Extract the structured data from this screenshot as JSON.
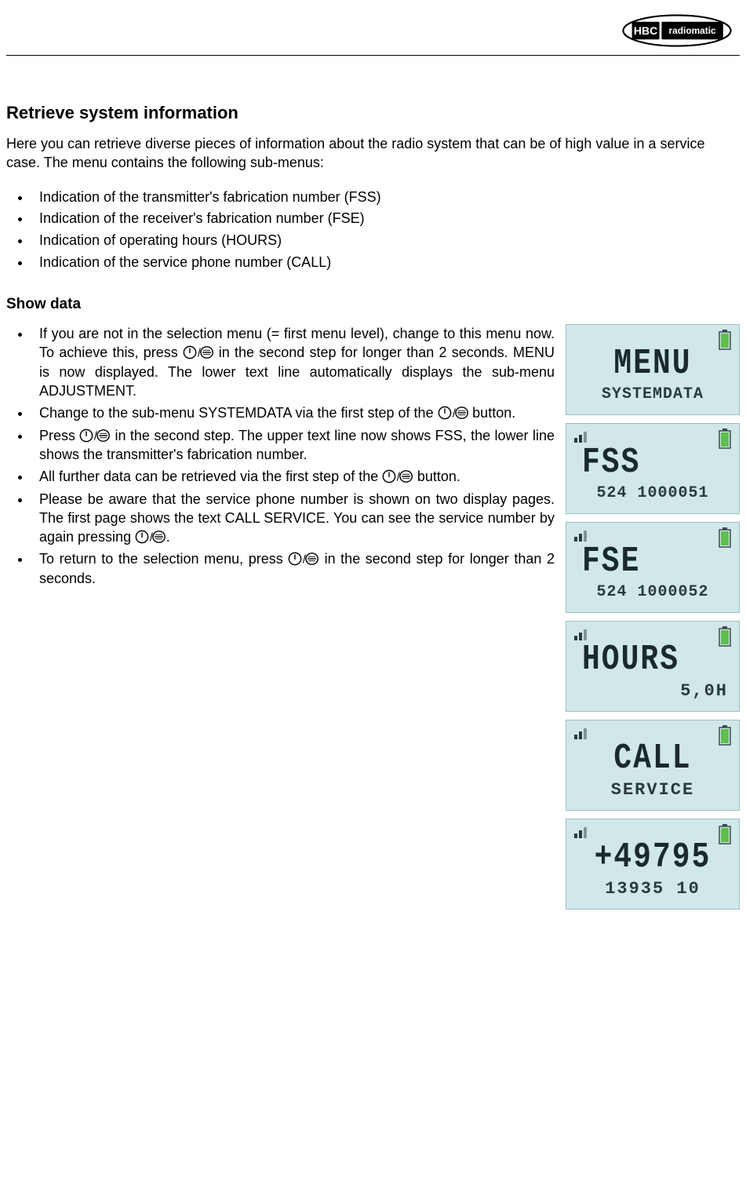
{
  "logo": {
    "text1": "HBC",
    "text2": "radiomatic"
  },
  "title": "Retrieve system information",
  "intro": "Here you can retrieve diverse pieces of information about the radio system that can be of high value in a service case. The menu contains the following sub-menus:",
  "overview_items": [
    "Indication of the transmitter's fabrication number (FSS)",
    "Indication of the receiver's fabrication number (FSE)",
    "Indication of operating hours (HOURS)",
    "Indication of the service phone number (CALL)"
  ],
  "subhead": "Show data",
  "steps": [
    {
      "pre": "If you are not in the selection menu (= first menu level), change to this menu now. To achieve this, press ",
      "btn": true,
      "post": " in the second step for longer than 2 seconds. MENU is now displayed. The lower text line automatically displays the sub-menu ADJUSTMENT."
    },
    {
      "pre": "Change to the sub-menu SYSTEMDATA via the first step of the ",
      "btn": true,
      "post": " button."
    },
    {
      "pre": "Press ",
      "btn": true,
      "post": " in the second step. The upper text line now shows FSS, the lower line shows the transmitter's fabrication number."
    },
    {
      "pre": "All further data can be retrieved via the first step of the ",
      "btn": true,
      "post": " button."
    },
    {
      "pre": "Please be aware that the service phone number is shown on two display pages. The first page shows the text CALL SERVICE. You can see the service number by again pressing ",
      "btn": true,
      "post": "."
    },
    {
      "pre": "To return to the selection menu, press ",
      "btn": true,
      "post": " in the second step for longer than 2 seconds."
    }
  ],
  "lcd_screens": [
    {
      "line1": "MENU",
      "line2": "SYSTEMDATA",
      "signal": false,
      "line1_align": "center",
      "line2_class": "small"
    },
    {
      "line1": "FSS",
      "line2": "524 1000051",
      "signal": true,
      "line1_align": "left",
      "line2_class": "small"
    },
    {
      "line1": "FSE",
      "line2": "524 1000052",
      "signal": true,
      "line1_align": "left",
      "line2_class": "small"
    },
    {
      "line1": "HOURS",
      "line2": "5,0H",
      "signal": true,
      "line1_align": "left",
      "line2_class": "right"
    },
    {
      "line1": "CALL",
      "line2": "SERVICE",
      "signal": true,
      "line1_align": "center",
      "line2_class": ""
    },
    {
      "line1": "+49795",
      "line2": "13935 10",
      "signal": true,
      "line1_align": "center",
      "line2_class": ""
    }
  ],
  "colors": {
    "lcd_bg": "#d1e8ea",
    "lcd_border": "#9fbfc2",
    "lcd_text": "#1a2a2c",
    "battery_green": "#5fbf4f"
  }
}
